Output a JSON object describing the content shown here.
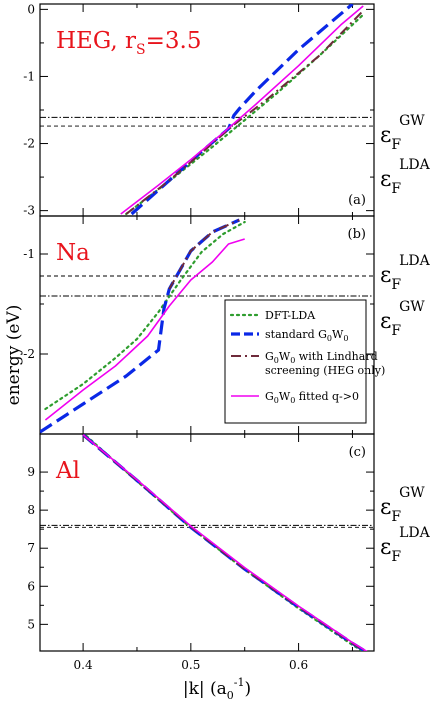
{
  "colors": {
    "dft_lda": "#2e9d2e",
    "standard_g0w0": "#0a28e6",
    "lindhard": "#6e2a3a",
    "fitted": "#f000f0",
    "title": "#e8141c"
  },
  "xaxis": {
    "label": "|k| (a",
    "label_sub": "0",
    "label_sup": "-1",
    "label_close": ")",
    "xlim": [
      0.36,
      0.67
    ],
    "ticks": [
      {
        "value": 0.4,
        "label": "0.4"
      },
      {
        "value": 0.5,
        "label": "0.5"
      },
      {
        "value": 0.6,
        "label": "0.6"
      }
    ]
  },
  "ylabel": "energy (eV)",
  "legend": {
    "placement": "inside-panel-b-lower-right",
    "entries": [
      {
        "series": "dft_lda",
        "label": "DFT-LDA"
      },
      {
        "series": "standard_g0w0",
        "label": "standard G",
        "sub": "0",
        "label2": "W",
        "sub2": "0"
      },
      {
        "series": "lindhard",
        "label": "G",
        "sub": "0",
        "label2": "W",
        "sub2": "0",
        "label3": " with Lindhard",
        "line2": "screening (HEG only)"
      },
      {
        "series": "fitted",
        "label": "G",
        "sub": "0",
        "label2": "W",
        "sub2": "0",
        "label3": " fitted q->0"
      }
    ]
  },
  "chart_data": [
    {
      "type": "line",
      "panel": "a",
      "title": "HEG, r",
      "title_sub": "S",
      "title_rest": "=3.5",
      "letter": "(a)",
      "ylim": [
        -3.08,
        0.08
      ],
      "yticks": [
        0,
        -1,
        -2,
        -3
      ],
      "ytick_labels": [
        "0",
        "-1",
        "-2",
        "-3"
      ],
      "fermi_levels": [
        {
          "name": "GW",
          "value": -1.61,
          "style": "dashdot",
          "label": "ε",
          "label_sub": "F",
          "label_sup": "GW"
        },
        {
          "name": "LDA",
          "value": -1.74,
          "style": "dashed",
          "label": "ε",
          "label_sub": "F",
          "label_sup": "LDA"
        }
      ],
      "series": [
        {
          "key": "dft_lda",
          "style": "dotted",
          "x": [
            0.44,
            0.48,
            0.52,
            0.55,
            0.58,
            0.62,
            0.66
          ],
          "y": [
            -3.05,
            -2.56,
            -2.05,
            -1.65,
            -1.25,
            -0.68,
            -0.08
          ]
        },
        {
          "key": "standard_g0w0",
          "style": "dashed",
          "x": [
            0.445,
            0.48,
            0.51,
            0.535,
            0.54,
            0.545,
            0.56,
            0.6,
            0.65
          ],
          "y": [
            -3.05,
            -2.55,
            -2.12,
            -1.78,
            -1.58,
            -1.48,
            -1.22,
            -0.6,
            0.08
          ]
        },
        {
          "key": "lindhard",
          "style": "dashdot",
          "x": [
            0.44,
            0.48,
            0.51,
            0.54,
            0.57,
            0.62,
            0.66
          ],
          "y": [
            -3.05,
            -2.55,
            -2.14,
            -1.72,
            -1.35,
            -0.68,
            -0.02
          ]
        },
        {
          "key": "fitted",
          "style": "solid",
          "x": [
            0.435,
            0.47,
            0.5,
            0.53,
            0.56,
            0.6,
            0.64,
            0.66
          ],
          "y": [
            -3.05,
            -2.62,
            -2.24,
            -1.84,
            -1.42,
            -0.84,
            -0.22,
            0.05
          ]
        }
      ]
    },
    {
      "type": "line",
      "panel": "b",
      "title": "Na",
      "letter": "(b)",
      "ylim": [
        -2.8,
        -0.62
      ],
      "yticks": [
        -1,
        -2
      ],
      "ytick_labels": [
        "-1",
        "-2"
      ],
      "fermi_levels": [
        {
          "name": "LDA",
          "value": -1.22,
          "style": "dashed",
          "label": "ε",
          "label_sub": "F",
          "label_sup": "LDA"
        },
        {
          "name": "GW",
          "value": -1.42,
          "style": "dashdot",
          "label": "ε",
          "label_sub": "F",
          "label_sup": "GW"
        }
      ],
      "series": [
        {
          "key": "dft_lda",
          "style": "dotted",
          "x": [
            0.365,
            0.4,
            0.43,
            0.45,
            0.47,
            0.49,
            0.51,
            0.53,
            0.55
          ],
          "y": [
            -2.55,
            -2.3,
            -2.04,
            -1.85,
            -1.58,
            -1.27,
            -0.98,
            -0.8,
            -0.68
          ]
        },
        {
          "key": "standard_g0w0",
          "style": "dashed",
          "x": [
            0.36,
            0.4,
            0.44,
            0.47,
            0.475,
            0.48,
            0.5,
            0.52,
            0.545
          ],
          "y": [
            -2.78,
            -2.5,
            -2.22,
            -1.96,
            -1.55,
            -1.35,
            -0.97,
            -0.78,
            -0.66
          ]
        },
        {
          "key": "lindhard",
          "style": "dashdot",
          "x": [
            0.48,
            0.5,
            0.52,
            0.545
          ],
          "y": [
            -1.35,
            -0.97,
            -0.78,
            -0.66
          ]
        },
        {
          "key": "fitted",
          "style": "solid",
          "x": [
            0.365,
            0.4,
            0.43,
            0.46,
            0.48,
            0.5,
            0.52,
            0.535,
            0.55
          ],
          "y": [
            -2.66,
            -2.36,
            -2.12,
            -1.82,
            -1.52,
            -1.26,
            -1.08,
            -0.9,
            -0.85
          ]
        }
      ]
    },
    {
      "type": "line",
      "panel": "c",
      "title": "Al",
      "letter": "(c)",
      "ylim": [
        4.3,
        10.0
      ],
      "yticks": [
        5,
        6,
        7,
        8,
        9
      ],
      "ytick_labels": [
        "5",
        "6",
        "7",
        "8",
        "9"
      ],
      "fermi_levels": [
        {
          "name": "GW",
          "value": 7.6,
          "style": "dashdot",
          "label": "ε",
          "label_sub": "F",
          "label_sup": "GW"
        },
        {
          "name": "LDA",
          "value": 7.55,
          "style": "dashed",
          "label": "ε",
          "label_sub": "F",
          "label_sup": "LDA"
        }
      ],
      "series": [
        {
          "key": "dft_lda",
          "style": "dotted",
          "x": [
            0.403,
            0.45,
            0.5,
            0.55,
            0.6,
            0.65,
            0.665
          ],
          "y": [
            9.95,
            8.76,
            7.54,
            6.44,
            5.42,
            4.46,
            4.2
          ]
        },
        {
          "key": "standard_g0w0",
          "style": "dashed",
          "x": [
            0.4,
            0.45,
            0.5,
            0.55,
            0.6,
            0.65,
            0.665
          ],
          "y": [
            9.98,
            8.78,
            7.55,
            6.45,
            5.45,
            4.5,
            4.24
          ]
        },
        {
          "key": "lindhard",
          "style": "dashdot",
          "x": [
            0.4,
            0.45,
            0.5,
            0.55,
            0.6,
            0.65,
            0.665
          ],
          "y": [
            9.98,
            8.78,
            7.56,
            6.45,
            5.46,
            4.5,
            4.24
          ]
        },
        {
          "key": "fitted",
          "style": "solid",
          "x": [
            0.4,
            0.45,
            0.5,
            0.55,
            0.6,
            0.65,
            0.665
          ],
          "y": [
            9.98,
            8.8,
            7.58,
            6.49,
            5.48,
            4.52,
            4.26
          ]
        }
      ]
    }
  ]
}
